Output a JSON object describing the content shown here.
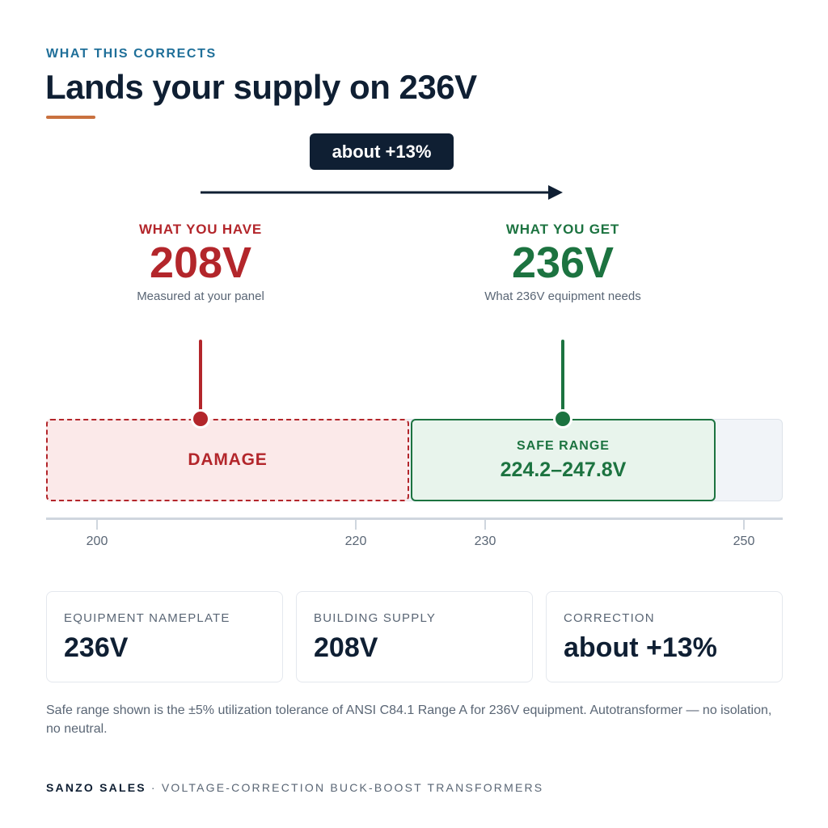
{
  "eyebrow": "WHAT THIS CORRECTS",
  "title": "Lands your supply on 236V",
  "correction_pill": "about +13%",
  "have": {
    "label": "WHAT YOU HAVE",
    "value": "208V",
    "sub": "Measured at your panel"
  },
  "get": {
    "label": "WHAT YOU GET",
    "value": "236V",
    "sub": "What 236V equipment needs"
  },
  "zones": {
    "damage_label": "DAMAGE",
    "safe_label": "SAFE RANGE",
    "safe_range": "224.2–247.8V"
  },
  "axis_ticks": [
    "200",
    "220",
    "230",
    "250"
  ],
  "cards": [
    {
      "label": "EQUIPMENT NAMEPLATE",
      "value": "236V"
    },
    {
      "label": "BUILDING SUPPLY",
      "value": "208V"
    },
    {
      "label": "CORRECTION",
      "value": "about +13%"
    }
  ],
  "note": "Safe range shown is the ±5% utilization tolerance of ANSI C84.1 Range A for 236V equipment. Autotransformer — no isolation, no neutral.",
  "footer": {
    "brand": "SANZO SALES",
    "separator": "·",
    "tagline": "VOLTAGE-CORRECTION BUCK-BOOST TRANSFORMERS"
  },
  "colors": {
    "navy": "#0f1f33",
    "damage_red": "#b3262b",
    "safe_green": "#1c7340",
    "accent_orange": "#c9713f",
    "eyebrow_blue": "#1f6f99"
  }
}
